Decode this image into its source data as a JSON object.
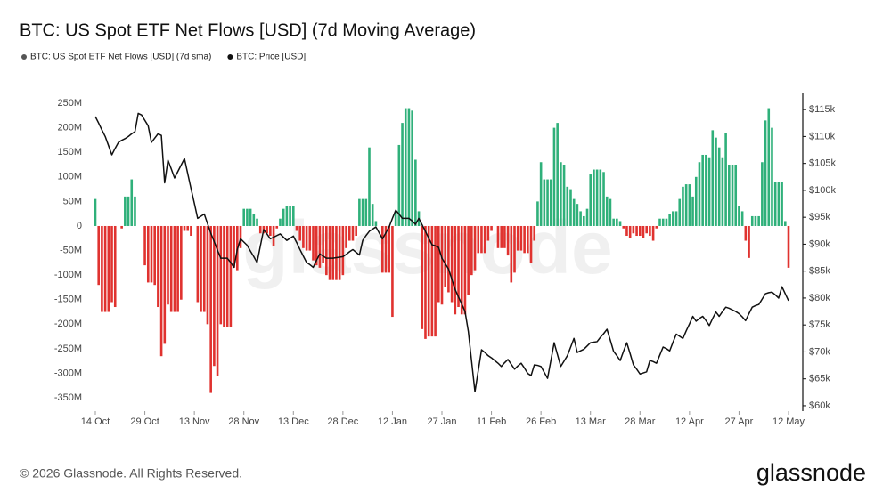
{
  "chart_data": {
    "type": "bar",
    "title": "BTC: US Spot ETF Net Flows [USD] (7d Moving Average)",
    "watermark": "glassnode",
    "footer": "© 2026 Glassnode. All Rights Reserved.",
    "logo": "glassnode",
    "categories": [
      "14 Oct",
      null,
      null,
      null,
      null,
      null,
      null,
      null,
      null,
      null,
      null,
      null,
      null,
      null,
      null,
      "29 Oct",
      null,
      null,
      null,
      null,
      null,
      null,
      null,
      null,
      null,
      null,
      null,
      null,
      null,
      null,
      "13 Nov",
      null,
      null,
      null,
      null,
      null,
      null,
      null,
      null,
      null,
      null,
      null,
      null,
      null,
      null,
      "28 Nov",
      null,
      null,
      null,
      null,
      null,
      null,
      null,
      null,
      null,
      null,
      null,
      null,
      null,
      null,
      "13 Dec",
      null,
      null,
      null,
      null,
      null,
      null,
      null,
      null,
      null,
      null,
      null,
      null,
      null,
      null,
      "28 Dec",
      null,
      null,
      null,
      null,
      null,
      null,
      null,
      null,
      null,
      null,
      null,
      null,
      null,
      null,
      "12 Jan",
      null,
      null,
      null,
      null,
      null,
      null,
      null,
      null,
      null,
      null,
      null,
      null,
      null,
      null,
      "27 Jan",
      null,
      null,
      null,
      null,
      null,
      null,
      null,
      null,
      null,
      null,
      null,
      null,
      null,
      null,
      "11 Feb",
      null,
      null,
      null,
      null,
      null,
      null,
      null,
      null,
      null,
      null,
      null,
      null,
      null,
      null,
      "26 Feb",
      null,
      null,
      null,
      null,
      null,
      null,
      null,
      null,
      null,
      null,
      null,
      null,
      null,
      null,
      "13 Mar",
      null,
      null,
      null,
      null,
      null,
      null,
      null,
      null,
      null,
      null,
      null,
      null,
      null,
      null,
      "28 Mar",
      null,
      null,
      null,
      null,
      null,
      null,
      null,
      null,
      null,
      null,
      null,
      null,
      null,
      null,
      "12 Apr",
      null,
      null,
      null,
      null,
      null,
      null,
      null,
      null,
      null,
      null,
      null,
      null,
      null,
      null,
      "27 Apr",
      null,
      null,
      null,
      null,
      null,
      null,
      null,
      null,
      null,
      null,
      null,
      null,
      null,
      null,
      "12 May"
    ],
    "series": [
      {
        "name": "BTC: US Spot ETF Net Flows [USD] (7d sma)",
        "type": "bar",
        "legend_color": "#555555",
        "color": "#2fb07a",
        "negative_color": "#e0322f",
        "values": [
          55000000.0,
          -120000000.0,
          -175000000.0,
          -175000000.0,
          -175000000.0,
          -155000000.0,
          -165000000.0,
          null,
          -5000000.0,
          60000000.0,
          60000000.0,
          95000000.0,
          60000000.0,
          null,
          null,
          -80000000.0,
          -115000000.0,
          -115000000.0,
          -120000000.0,
          -165000000.0,
          -265000000.0,
          -240000000.0,
          -160000000.0,
          -175000000.0,
          -175000000.0,
          -175000000.0,
          -150000000.0,
          -10000000.0,
          -10000000.0,
          -20000000.0,
          null,
          -155000000.0,
          -175000000.0,
          -175000000.0,
          -200000000.0,
          -340000000.0,
          -285000000.0,
          -305000000.0,
          -200000000.0,
          -205000000.0,
          -205000000.0,
          -205000000.0,
          -85000000.0,
          -90000000.0,
          -45000000.0,
          35000000.0,
          35000000.0,
          35000000.0,
          25000000.0,
          15000000.0,
          -15000000.0,
          -15000000.0,
          -15000000.0,
          -20000000.0,
          -40000000.0,
          -5000000.0,
          15000000.0,
          35000000.0,
          40000000.0,
          40000000.0,
          40000000.0,
          -10000000.0,
          -30000000.0,
          -45000000.0,
          -50000000.0,
          -50000000.0,
          -70000000.0,
          -80000000.0,
          -85000000.0,
          -75000000.0,
          -100000000.0,
          -110000000.0,
          -110000000.0,
          -110000000.0,
          -110000000.0,
          -100000000.0,
          -45000000.0,
          -30000000.0,
          -30000000.0,
          -20000000.0,
          55000000.0,
          55000000.0,
          55000000.0,
          160000000.0,
          45000000.0,
          10000000.0,
          null,
          -95000000.0,
          -95000000.0,
          -95000000.0,
          -185000000.0,
          30000000.0,
          165000000.0,
          210000000.0,
          240000000.0,
          240000000.0,
          235000000.0,
          135000000.0,
          30000000.0,
          -210000000.0,
          -230000000.0,
          -225000000.0,
          -225000000.0,
          -225000000.0,
          -155000000.0,
          -160000000.0,
          -125000000.0,
          -135000000.0,
          -155000000.0,
          -180000000.0,
          -165000000.0,
          -180000000.0,
          -180000000.0,
          -140000000.0,
          -100000000.0,
          -90000000.0,
          -55000000.0,
          -55000000.0,
          -55000000.0,
          -30000000.0,
          -10000000.0,
          null,
          -45000000.0,
          -45000000.0,
          -45000000.0,
          -60000000.0,
          -115000000.0,
          -95000000.0,
          -50000000.0,
          -50000000.0,
          -55000000.0,
          -55000000.0,
          -75000000.0,
          -30000000.0,
          50000000.0,
          130000000.0,
          95000000.0,
          95000000.0,
          95000000.0,
          200000000.0,
          210000000.0,
          130000000.0,
          125000000.0,
          80000000.0,
          75000000.0,
          55000000.0,
          45000000.0,
          30000000.0,
          20000000.0,
          35000000.0,
          105000000.0,
          115000000.0,
          115000000.0,
          115000000.0,
          110000000.0,
          60000000.0,
          55000000.0,
          15000000.0,
          15000000.0,
          10000000.0,
          -5000000.0,
          -20000000.0,
          -25000000.0,
          -15000000.0,
          -20000000.0,
          -20000000.0,
          -25000000.0,
          -15000000.0,
          -20000000.0,
          -30000000.0,
          -5000000.0,
          15000000.0,
          15000000.0,
          15000000.0,
          25000000.0,
          30000000.0,
          30000000.0,
          55000000.0,
          80000000.0,
          85000000.0,
          85000000.0,
          60000000.0,
          100000000.0,
          130000000.0,
          145000000.0,
          145000000.0,
          140000000.0,
          195000000.0,
          180000000.0,
          160000000.0,
          140000000.0,
          190000000.0,
          125000000.0,
          125000000.0,
          125000000.0,
          40000000.0,
          30000000.0,
          -30000000.0,
          -65000000.0,
          20000000.0,
          20000000.0,
          20000000.0,
          130000000.0,
          215000000.0,
          240000000.0,
          200000000.0,
          90000000.0,
          90000000.0,
          90000000.0,
          10000000.0,
          -85000000.0
        ]
      },
      {
        "name": "BTC: Price [USD]",
        "type": "line",
        "axis": "y2",
        "color": "#111111",
        "values": [
          113700,
          112500,
          111200,
          110000,
          108300,
          106600,
          107800,
          108900,
          109300,
          109600,
          110000,
          110500,
          110900,
          114300,
          114000,
          113000,
          112000,
          108900,
          109700,
          110500,
          110200,
          101400,
          105600,
          104000,
          102300,
          103500,
          104700,
          105900,
          103100,
          100300,
          97600,
          94800,
          95200,
          95600,
          93800,
          92000,
          90500,
          88900,
          87400,
          87400,
          87400,
          86600,
          85700,
          89000,
          91000,
          90400,
          89800,
          88700,
          87700,
          86600,
          89700,
          92700,
          91900,
          91000,
          91300,
          91600,
          91900,
          91300,
          90700,
          91100,
          91500,
          90300,
          89000,
          87800,
          86600,
          86200,
          85700,
          87000,
          88200,
          87800,
          87400,
          87400,
          87400,
          87500,
          87600,
          87700,
          88100,
          88600,
          89000,
          88500,
          88000,
          90700,
          91600,
          92400,
          92800,
          93200,
          92100,
          91000,
          92100,
          93200,
          94800,
          96300,
          95600,
          94800,
          94800,
          94800,
          94300,
          93700,
          94800,
          93600,
          92400,
          91100,
          89900,
          89700,
          89400,
          87400,
          86400,
          85400,
          83500,
          81600,
          80200,
          78900,
          77500,
          73800,
          68200,
          62600,
          66500,
          70400,
          69900,
          69300,
          68900,
          68400,
          67900,
          67300,
          68000,
          68600,
          67700,
          66800,
          67400,
          67900,
          67000,
          66000,
          65600,
          67600,
          67500,
          67300,
          66200,
          65100,
          68400,
          71700,
          69500,
          67300,
          68300,
          69300,
          70900,
          72500,
          69900,
          70200,
          70500,
          71100,
          71700,
          71800,
          71900,
          72700,
          73400,
          74200,
          72200,
          70100,
          69300,
          68400,
          70100,
          71700,
          69700,
          67600,
          66800,
          65900,
          66100,
          66300,
          68400,
          68200,
          67900,
          69400,
          70900,
          70600,
          70200,
          71800,
          73300,
          72900,
          72500,
          73900,
          75200,
          76600,
          75700,
          76200,
          76600,
          75800,
          74900,
          76200,
          77400,
          76600,
          77500,
          78300,
          78100,
          77800,
          77500,
          77100,
          76500,
          75800,
          77100,
          78300,
          78600,
          78800,
          79800,
          80800,
          81000,
          81100,
          80600,
          80000,
          82100,
          80800,
          79500
        ]
      }
    ],
    "ylim": [
      -377000000,
      270000000
    ],
    "yticks": [
      {
        "value": 250000000,
        "label": "250M"
      },
      {
        "value": 200000000,
        "label": "200M"
      },
      {
        "value": 150000000,
        "label": "150M"
      },
      {
        "value": 100000000,
        "label": "100M"
      },
      {
        "value": 50000000,
        "label": "50M"
      },
      0,
      {
        "value": -50000000,
        "label": "-50M"
      },
      {
        "value": -100000000,
        "label": "-100M"
      },
      {
        "value": -150000000,
        "label": "-150M"
      },
      {
        "value": -200000000,
        "label": "-200M"
      },
      {
        "value": -250000000,
        "label": "-250M"
      },
      {
        "value": -300000000,
        "label": "-300M"
      },
      {
        "value": -350000000,
        "label": "-350M"
      }
    ],
    "y2lim": [
      59000,
      118000
    ],
    "y2ticks": [
      {
        "value": 115000,
        "label": "$115k"
      },
      {
        "value": 110000,
        "label": "$110k"
      },
      {
        "value": 105000,
        "label": "$105k"
      },
      {
        "value": 100000,
        "label": "$100k"
      },
      {
        "value": 95000,
        "label": "$95k"
      },
      {
        "value": 90000,
        "label": "$90k"
      },
      {
        "value": 85000,
        "label": "$85k"
      },
      {
        "value": 80000,
        "label": "$80k"
      },
      {
        "value": 75000,
        "label": "$75k"
      },
      {
        "value": 70000,
        "label": "$70k"
      },
      {
        "value": 65000,
        "label": "$65k"
      },
      {
        "value": 60000,
        "label": "$60k"
      }
    ],
    "grid": false
  }
}
